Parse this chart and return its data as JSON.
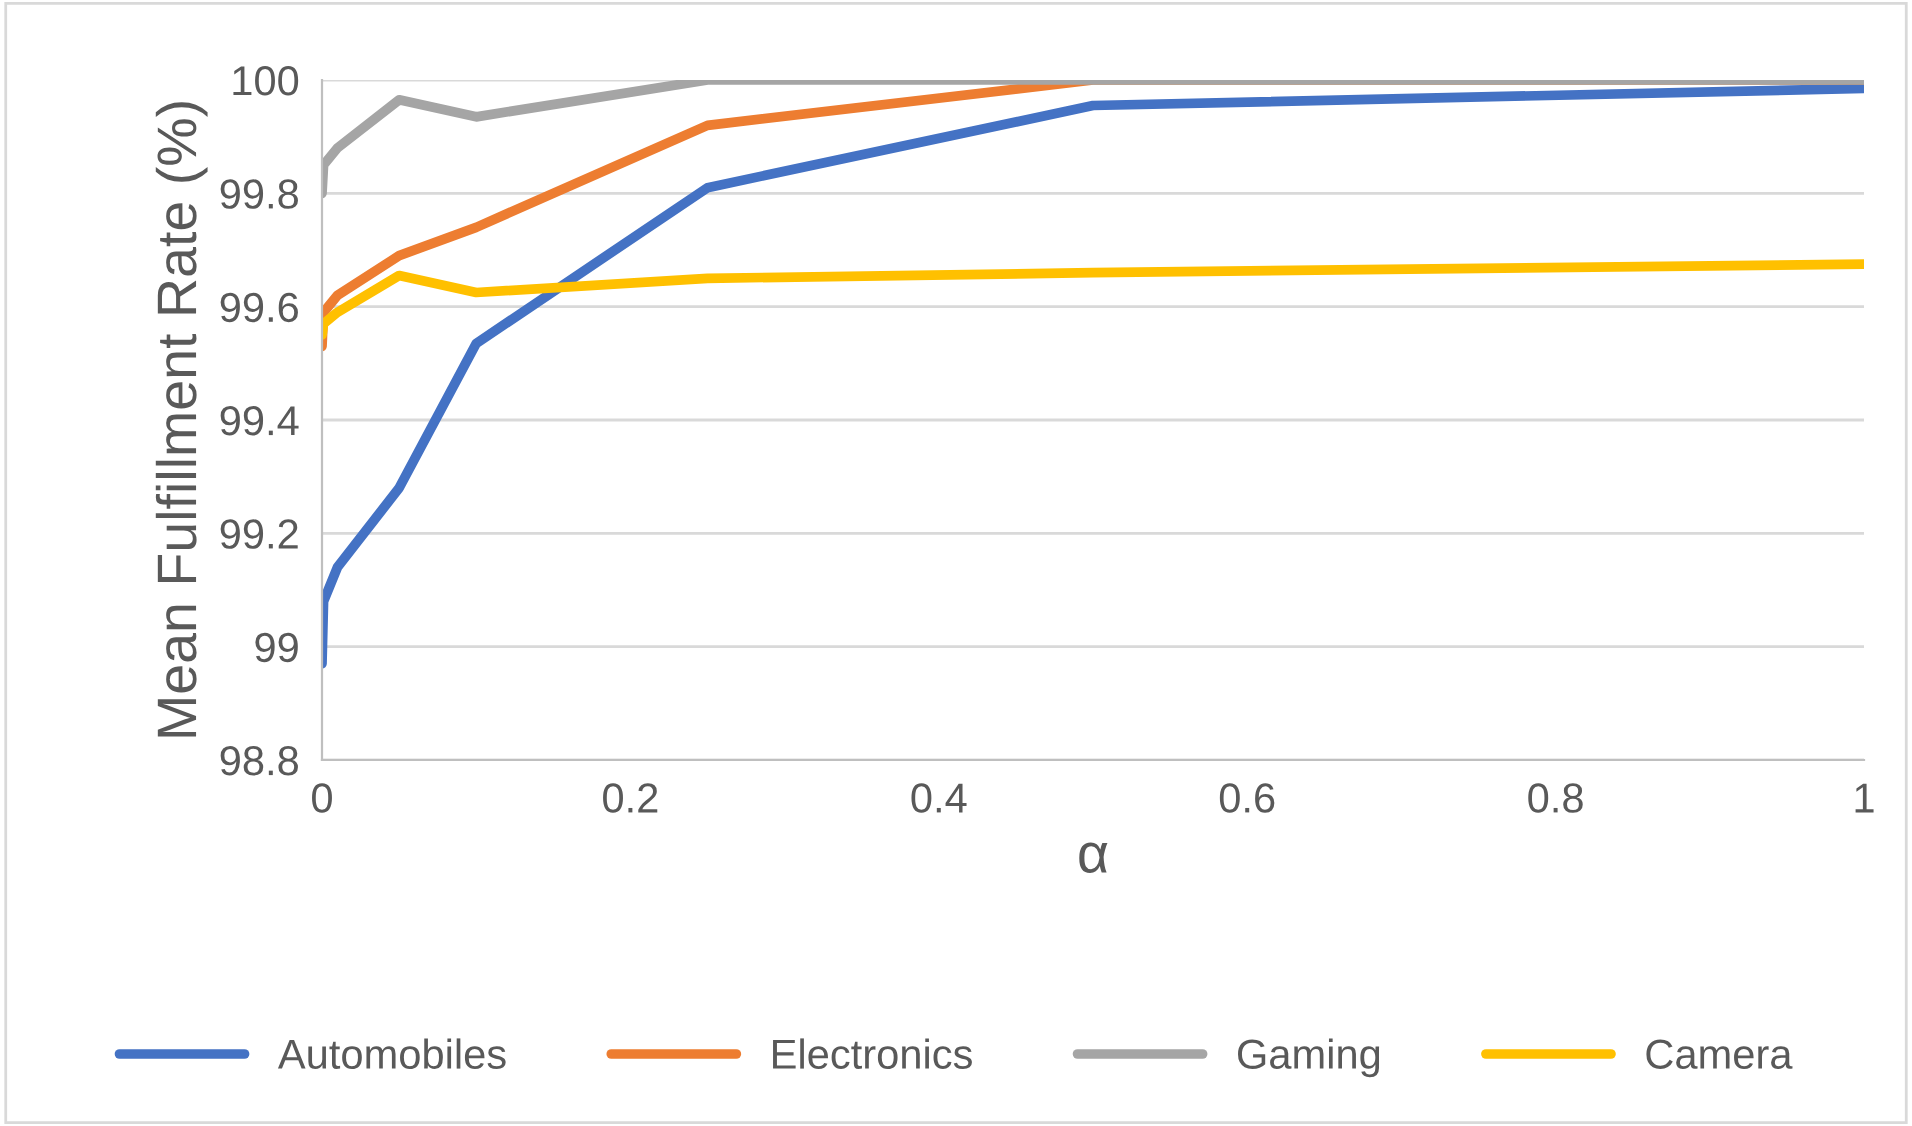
{
  "chart_data": {
    "type": "line",
    "xlabel": "α",
    "ylabel": "Mean Fulfillment Rate (%)",
    "x": [
      0,
      0.001,
      0.01,
      0.05,
      0.1,
      0.25,
      0.5,
      1
    ],
    "series": [
      {
        "name": "Automobiles",
        "color": "#4472c4",
        "values": [
          98.97,
          99.08,
          99.14,
          99.28,
          99.535,
          99.81,
          99.955,
          99.985
        ]
      },
      {
        "name": "Electronics",
        "color": "#ed7d31",
        "values": [
          99.53,
          99.59,
          99.62,
          99.69,
          99.74,
          99.92,
          100,
          100
        ]
      },
      {
        "name": "Gaming",
        "color": "#a5a5a5",
        "values": [
          99.8,
          99.85,
          99.88,
          99.965,
          99.935,
          100,
          100,
          100
        ]
      },
      {
        "name": "Camera",
        "color": "#ffc000",
        "values": [
          99.55,
          99.57,
          99.59,
          99.655,
          99.625,
          99.65,
          99.66,
          99.675
        ]
      }
    ],
    "xlim": [
      0,
      1
    ],
    "xticks": [
      0,
      0.2,
      0.4,
      0.6,
      0.8,
      1
    ],
    "ylim": [
      98.8,
      100
    ],
    "yticks": [
      98.8,
      99,
      99.2,
      99.4,
      99.6,
      99.8,
      100
    ],
    "grid": "y",
    "legend": "bottom",
    "marker": "none",
    "line_style": "solid"
  }
}
